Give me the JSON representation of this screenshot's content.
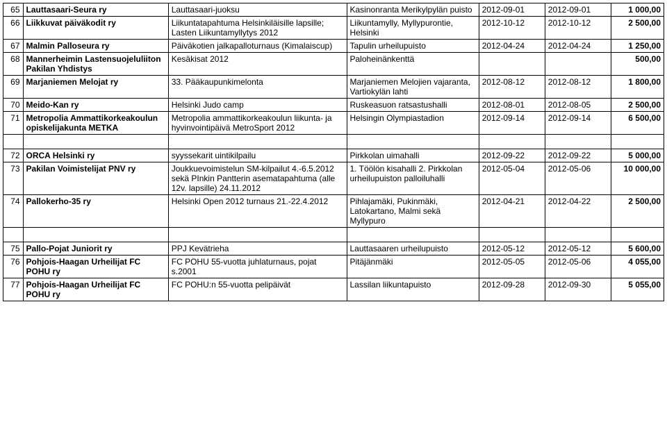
{
  "rows": [
    {
      "type": "data",
      "num": "65",
      "name": "Lauttasaari-Seura ry",
      "event": "Lauttasaari-juoksu",
      "place": "Kasinonranta Merikylpylän puisto",
      "d1": "2012-09-01",
      "d2": "2012-09-01",
      "amt": "1 000,00",
      "bold": true
    },
    {
      "type": "data",
      "num": "66",
      "name": "Liikkuvat päiväkodit ry",
      "event": "Liikuntatapahtuma Helsinkiläisille lapsille; Lasten Liikuntamyllytys 2012",
      "place": "Liikuntamylly, Myllypurontie, Helsinki",
      "d1": "2012-10-12",
      "d2": "2012-10-12",
      "amt": "2 500,00",
      "bold": true
    },
    {
      "type": "data",
      "num": "67",
      "name": "Malmin Palloseura ry",
      "event": "Päiväkotien jalkapalloturnaus (Kimalaiscup)",
      "place": "Tapulin urheilupuisto",
      "d1": "2012-04-24",
      "d2": "2012-04-24",
      "amt": "1 250,00",
      "bold": true
    },
    {
      "type": "data",
      "num": "68",
      "name": "Mannerheimin Lastensuojeluliiton Pakilan Yhdistys",
      "event": "Kesäkisat 2012",
      "place": "Paloheinänkenttä",
      "d1": "",
      "d2": "",
      "amt": "500,00",
      "bold": true
    },
    {
      "type": "data",
      "num": "69",
      "name": "Marjaniemen Melojat ry",
      "event": "33. Pääkaupunkimelonta",
      "place": "Marjaniemen Melojien vajaranta, Vartiokylän lahti",
      "d1": "2012-08-12",
      "d2": "2012-08-12",
      "amt": "1 800,00",
      "bold": true
    },
    {
      "type": "data",
      "num": "70",
      "name": "Meido-Kan ry",
      "event": "Helsinki Judo camp",
      "place": "Ruskeasuon ratsastushalli",
      "d1": "2012-08-01",
      "d2": "2012-08-05",
      "amt": "2 500,00",
      "bold": true
    },
    {
      "type": "data",
      "num": "71",
      "name": "Metropolia Ammattikorkeakoulun opiskelijakunta METKA",
      "event": "Metropolia ammattikorkeakoulun liikunta- ja hyvinvointipäivä MetroSport 2012",
      "place": "Helsingin Olympiastadion",
      "d1": "2012-09-14",
      "d2": "2012-09-14",
      "amt": "6 500,00",
      "bold": true
    },
    {
      "type": "spacer"
    },
    {
      "type": "data",
      "num": "72",
      "name": "ORCA Helsinki ry",
      "event": "syyssekarit uintikilpailu",
      "place": "Pirkkolan uimahalli",
      "d1": "2012-09-22",
      "d2": "2012-09-22",
      "amt": "5 000,00",
      "bold": true
    },
    {
      "type": "data",
      "num": "73",
      "name": "Pakilan Voimistelijat PNV ry",
      "event": "Joukkuevoimistelun SM-kilpailut 4.-6.5.2012 sekä PInkin Pantterin asematapahtuma (alle 12v. lapsille) 24.11.2012",
      "place": "1. Töölön kisahalli 2. Pirkkolan urheilupuiston palloiluhalli",
      "d1": "2012-05-04",
      "d2": "2012-05-06",
      "amt": "10 000,00",
      "bold": true
    },
    {
      "type": "data",
      "num": "74",
      "name": "Pallokerho-35 ry",
      "event": "Helsinki Open 2012 turnaus 21.-22.4.2012",
      "place": "Pihlajamäki, Pukinmäki, Latokartano, Malmi sekä Myllypuro",
      "d1": "2012-04-21",
      "d2": "2012-04-22",
      "amt": "2 500,00",
      "bold": true
    },
    {
      "type": "spacer"
    },
    {
      "type": "data",
      "num": "75",
      "name": "Pallo-Pojat Juniorit ry",
      "event": "PPJ Kevätrieha",
      "place": "Lauttasaaren urheilupuisto",
      "d1": "2012-05-12",
      "d2": "2012-05-12",
      "amt": "5 600,00",
      "bold": true
    },
    {
      "type": "data",
      "num": "76",
      "name": "Pohjois-Haagan Urheilijat FC POHU ry",
      "event": "FC POHU 55-vuotta juhlaturnaus, pojat s.2001",
      "place": "Pitäjänmäki",
      "d1": "2012-05-05",
      "d2": "2012-05-06",
      "amt": "4 055,00",
      "bold": true
    },
    {
      "type": "data",
      "num": "77",
      "name": "Pohjois-Haagan Urheilijat FC POHU ry",
      "event": "FC POHU:n 55-vuotta pelipäivät",
      "place": "Lassilan liikuntapuisto",
      "d1": "2012-09-28",
      "d2": "2012-09-30",
      "amt": "5 055,00",
      "bold": true
    }
  ]
}
